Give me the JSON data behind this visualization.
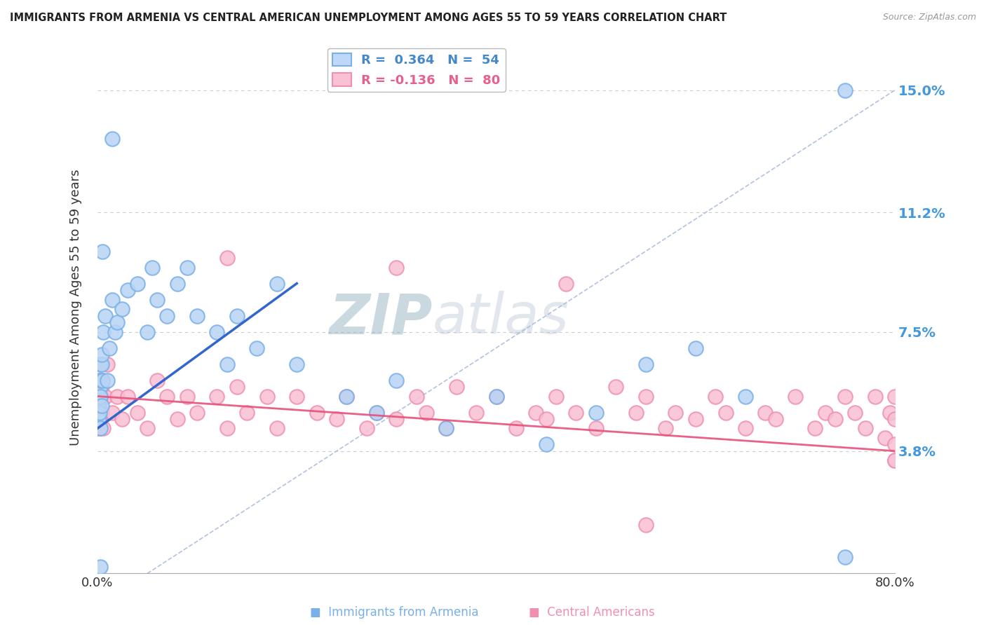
{
  "title": "IMMIGRANTS FROM ARMENIA VS CENTRAL AMERICAN UNEMPLOYMENT AMONG AGES 55 TO 59 YEARS CORRELATION CHART",
  "source": "Source: ZipAtlas.com",
  "ylabel": "Unemployment Among Ages 55 to 59 years",
  "xlim": [
    0.0,
    80.0
  ],
  "ylim": [
    0.0,
    16.5
  ],
  "yticks": [
    0.0,
    3.8,
    7.5,
    11.2,
    15.0
  ],
  "xticks": [
    0.0,
    10.0,
    20.0,
    30.0,
    40.0,
    50.0,
    60.0,
    70.0,
    80.0
  ],
  "armenia_color": "#7ab0e8",
  "central_color": "#f090b0",
  "armenia_fill": "#b8d4f4",
  "central_fill": "#f8c0d4",
  "armenia_line_color": "#3366cc",
  "central_line_color": "#e8507a",
  "diagonal_line_color": "#aabbdd",
  "background_color": "#ffffff",
  "grid_color": "#cccccc",
  "watermark": "ZIPatlas",
  "watermark_color_zip": "#aabbcc",
  "watermark_color_atlas": "#88aacc",
  "right_axis_color": "#4499dd",
  "armenia_N": 54,
  "central_N": 80,
  "armenia_R": 0.364,
  "central_R": -0.136,
  "armenia_x": [
    0.05,
    0.08,
    0.1,
    0.12,
    0.15,
    0.15,
    0.18,
    0.2,
    0.2,
    0.22,
    0.25,
    0.28,
    0.3,
    0.3,
    0.32,
    0.35,
    0.4,
    0.4,
    0.45,
    0.5,
    0.6,
    0.8,
    1.0,
    1.2,
    1.5,
    1.8,
    2.0,
    2.5,
    3.0,
    4.0,
    5.0,
    5.5,
    6.0,
    7.0,
    8.0,
    9.0,
    10.0,
    12.0,
    13.0,
    14.0,
    16.0,
    18.0,
    20.0,
    25.0,
    28.0,
    30.0,
    35.0,
    40.0,
    45.0,
    50.0,
    55.0,
    60.0,
    65.0,
    75.0
  ],
  "armenia_y": [
    4.8,
    5.5,
    5.0,
    5.2,
    5.0,
    5.5,
    4.8,
    6.0,
    5.0,
    5.8,
    5.5,
    4.5,
    6.5,
    5.8,
    5.5,
    6.0,
    6.5,
    5.2,
    6.8,
    6.0,
    7.5,
    8.0,
    6.0,
    7.0,
    8.5,
    7.5,
    7.8,
    8.2,
    8.8,
    9.0,
    7.5,
    9.5,
    8.5,
    8.0,
    9.0,
    9.5,
    8.0,
    7.5,
    6.5,
    8.0,
    7.0,
    9.0,
    6.5,
    5.5,
    5.0,
    6.0,
    4.5,
    5.5,
    4.0,
    5.0,
    6.5,
    7.0,
    5.5,
    15.0
  ],
  "central_x": [
    0.05,
    0.08,
    0.1,
    0.12,
    0.15,
    0.18,
    0.2,
    0.22,
    0.25,
    0.28,
    0.3,
    0.35,
    0.4,
    0.45,
    0.5,
    0.6,
    0.8,
    1.0,
    1.5,
    2.0,
    2.5,
    3.0,
    4.0,
    5.0,
    6.0,
    7.0,
    8.0,
    9.0,
    10.0,
    12.0,
    13.0,
    14.0,
    15.0,
    17.0,
    18.0,
    20.0,
    22.0,
    24.0,
    25.0,
    27.0,
    28.0,
    30.0,
    32.0,
    33.0,
    35.0,
    36.0,
    38.0,
    40.0,
    42.0,
    44.0,
    45.0,
    46.0,
    48.0,
    50.0,
    52.0,
    54.0,
    55.0,
    57.0,
    58.0,
    60.0,
    62.0,
    63.0,
    65.0,
    67.0,
    68.0,
    70.0,
    72.0,
    73.0,
    74.0,
    75.0,
    76.0,
    77.0,
    78.0,
    79.0,
    79.5,
    80.0,
    80.0,
    80.0,
    80.0,
    80.0
  ],
  "central_y": [
    5.0,
    5.2,
    4.5,
    5.8,
    4.8,
    5.5,
    5.0,
    4.5,
    6.0,
    5.5,
    4.8,
    5.5,
    5.0,
    5.8,
    6.0,
    4.5,
    5.5,
    6.5,
    5.0,
    5.5,
    4.8,
    5.5,
    5.0,
    4.5,
    6.0,
    5.5,
    4.8,
    5.5,
    5.0,
    5.5,
    4.5,
    5.8,
    5.0,
    5.5,
    4.5,
    5.5,
    5.0,
    4.8,
    5.5,
    4.5,
    5.0,
    4.8,
    5.5,
    5.0,
    4.5,
    5.8,
    5.0,
    5.5,
    4.5,
    5.0,
    4.8,
    5.5,
    5.0,
    4.5,
    5.8,
    5.0,
    5.5,
    4.5,
    5.0,
    4.8,
    5.5,
    5.0,
    4.5,
    5.0,
    4.8,
    5.5,
    4.5,
    5.0,
    4.8,
    5.5,
    5.0,
    4.5,
    5.5,
    4.2,
    5.0,
    5.5,
    4.8,
    3.5,
    4.0,
    3.5
  ],
  "arm_line_x0": 0.0,
  "arm_line_y0": 4.5,
  "arm_line_x1": 20.0,
  "arm_line_y1": 9.0,
  "cen_line_x0": 0.0,
  "cen_line_y0": 5.5,
  "cen_line_x1": 80.0,
  "cen_line_y1": 3.8,
  "diag_line_x0": 5.0,
  "diag_line_y0": 0.0,
  "diag_line_x1": 80.0,
  "diag_line_y1": 15.0
}
